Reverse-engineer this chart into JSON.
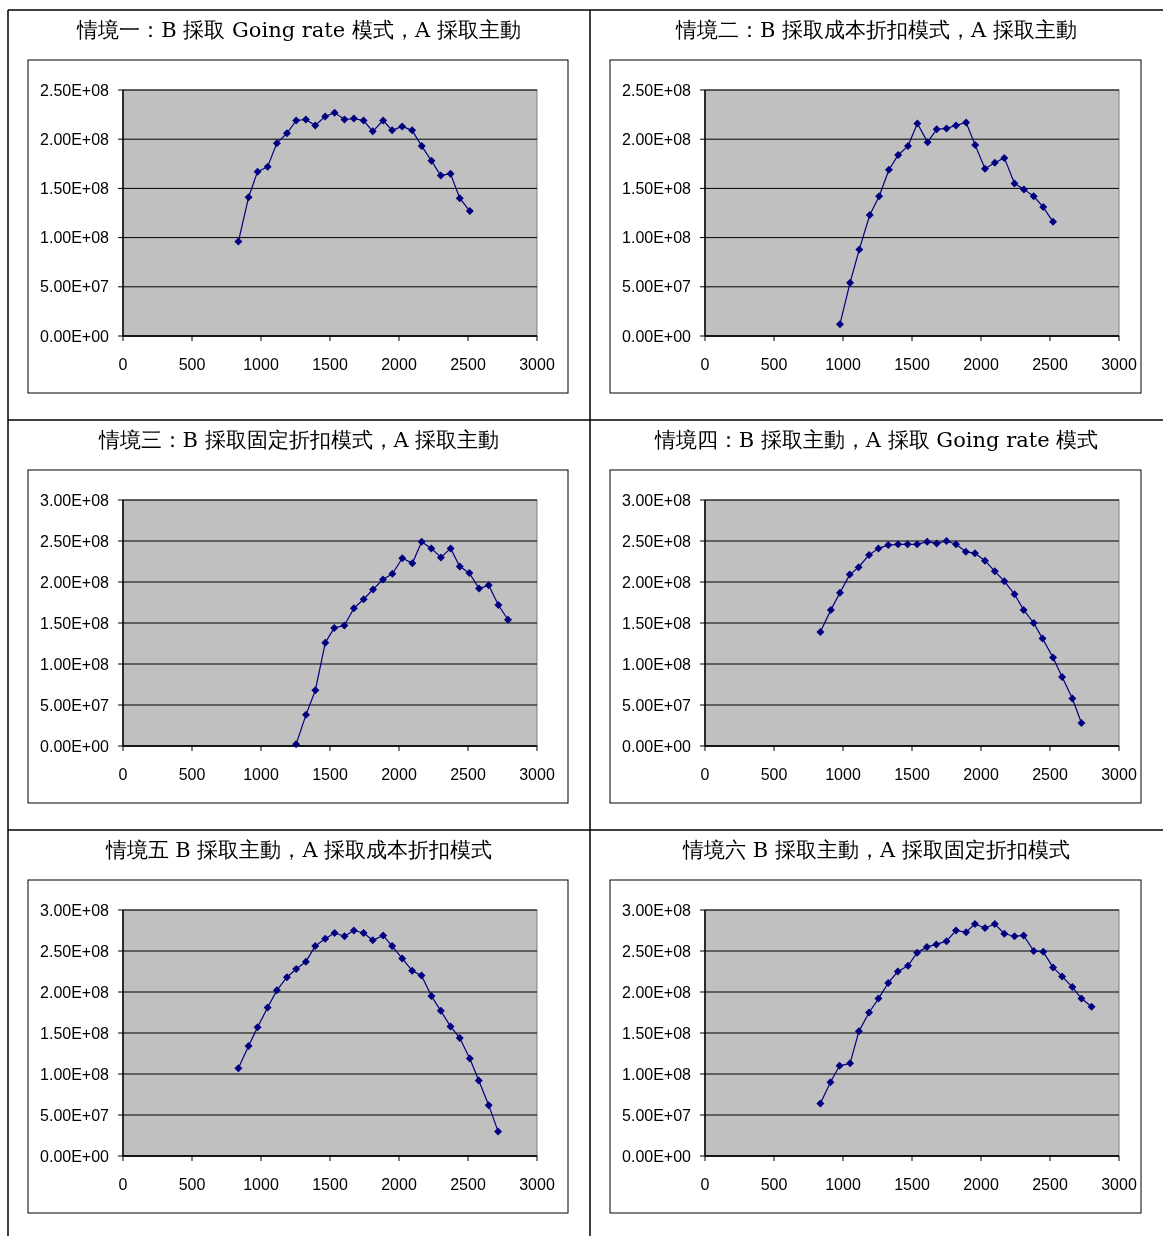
{
  "chart_data": [
    {
      "type": "line",
      "title": "情境一：B 採取 Going rate 模式，A 採取主動",
      "color": "#000080",
      "marker": "diamond",
      "grid": "y",
      "xlim": [
        0,
        3000
      ],
      "xticks": [
        0,
        500,
        1000,
        1500,
        2000,
        2500,
        3000
      ],
      "ylim": [
        0,
        250000000
      ],
      "yticks": [
        {
          "value": 0,
          "label": "0.00E+00"
        },
        {
          "value": 50000000,
          "label": "5.00E+07"
        },
        {
          "value": 100000000,
          "label": "1.00E+08"
        },
        {
          "value": 150000000,
          "label": "1.50E+08"
        },
        {
          "value": 200000000,
          "label": "2.00E+08"
        },
        {
          "value": 250000000,
          "label": "2.50E+08"
        }
      ],
      "x": [
        836,
        910,
        975,
        1048,
        1115,
        1188,
        1255,
        1325,
        1393,
        1465,
        1533,
        1605,
        1673,
        1743,
        1810,
        1885,
        1950,
        2023,
        2095,
        2165,
        2235,
        2303,
        2373,
        2440,
        2513
      ],
      "values": [
        96000000,
        141000000,
        167000000,
        172000000,
        196000000,
        206000000,
        219000000,
        220000000,
        214000000,
        223000000,
        227000000,
        220000000,
        221000000,
        219000000,
        208000000,
        219000000,
        209000000,
        213000000,
        209000000,
        193000000,
        178000000,
        163000000,
        165000000,
        140000000,
        127000000
      ]
    },
    {
      "type": "line",
      "title": "情境二：B 採取成本折扣模式，A 採取主動",
      "color": "#000080",
      "marker": "diamond",
      "grid": "y",
      "xlim": [
        0,
        3000
      ],
      "xticks": [
        0,
        500,
        1000,
        1500,
        2000,
        2500,
        3000
      ],
      "ylim": [
        0,
        250000000
      ],
      "yticks": [
        {
          "value": 0,
          "label": "0.00E+00"
        },
        {
          "value": 50000000,
          "label": "5.00E+07"
        },
        {
          "value": 100000000,
          "label": "1.00E+08"
        },
        {
          "value": 150000000,
          "label": "1.50E+08"
        },
        {
          "value": 200000000,
          "label": "2.00E+08"
        },
        {
          "value": 250000000,
          "label": "2.50E+08"
        }
      ],
      "x": [
        978,
        1051,
        1118,
        1194,
        1262,
        1333,
        1400,
        1471,
        1539,
        1613,
        1679,
        1750,
        1819,
        1892,
        1958,
        2029,
        2100,
        2169,
        2243,
        2311,
        2382,
        2451,
        2522
      ],
      "values": [
        12000000,
        54000000,
        88000000,
        123000000,
        142000000,
        169000000,
        184000000,
        193000000,
        216000000,
        197000000,
        210000000,
        211000000,
        214000000,
        217000000,
        194000000,
        170000000,
        176000000,
        181000000,
        155000000,
        149000000,
        142000000,
        131000000,
        116000000
      ]
    },
    {
      "type": "line",
      "title": "情境三：B 採取固定折扣模式，A 採取主動",
      "color": "#000080",
      "marker": "diamond",
      "grid": "y",
      "xlim": [
        0,
        3000
      ],
      "xticks": [
        0,
        500,
        1000,
        1500,
        2000,
        2500,
        3000
      ],
      "ylim": [
        0,
        300000000
      ],
      "yticks": [
        {
          "value": 0,
          "label": "0.00E+00"
        },
        {
          "value": 50000000,
          "label": "5.00E+07"
        },
        {
          "value": 100000000,
          "label": "1.00E+08"
        },
        {
          "value": 150000000,
          "label": "1.50E+08"
        },
        {
          "value": 200000000,
          "label": "2.00E+08"
        },
        {
          "value": 250000000,
          "label": "2.50E+08"
        },
        {
          "value": 300000000,
          "label": "3.00E+08"
        }
      ],
      "x": [
        1254,
        1326,
        1394,
        1466,
        1531,
        1604,
        1673,
        1744,
        1812,
        1884,
        1952,
        2024,
        2097,
        2164,
        2234,
        2304,
        2374,
        2440,
        2510,
        2580,
        2650,
        2720,
        2790
      ],
      "values": [
        2000000,
        38000000,
        68000000,
        126000000,
        144000000,
        147000000,
        168000000,
        179000000,
        191000000,
        203000000,
        210000000,
        229000000,
        223000000,
        249000000,
        241000000,
        230000000,
        241000000,
        219000000,
        211000000,
        192000000,
        196000000,
        172000000,
        154000000
      ]
    },
    {
      "type": "line",
      "title": "情境四：B 採取主動，A 採取 Going rate 模式",
      "color": "#000080",
      "marker": "diamond",
      "grid": "y",
      "xlim": [
        0,
        3000
      ],
      "xticks": [
        0,
        500,
        1000,
        1500,
        2000,
        2500,
        3000
      ],
      "ylim": [
        0,
        300000000
      ],
      "yticks": [
        {
          "value": 0,
          "label": "0.00E+00"
        },
        {
          "value": 50000000,
          "label": "5.00E+07"
        },
        {
          "value": 100000000,
          "label": "1.00E+08"
        },
        {
          "value": 150000000,
          "label": "1.50E+08"
        },
        {
          "value": 200000000,
          "label": "2.00E+08"
        },
        {
          "value": 250000000,
          "label": "2.50E+08"
        },
        {
          "value": 300000000,
          "label": "3.00E+08"
        }
      ],
      "x": [
        836,
        912,
        978,
        1049,
        1113,
        1189,
        1257,
        1328,
        1399,
        1468,
        1537,
        1610,
        1679,
        1750,
        1819,
        1890,
        1956,
        2029,
        2100,
        2169,
        2243,
        2309,
        2382,
        2446,
        2522,
        2588,
        2662,
        2728
      ],
      "values": [
        139000000,
        166000000,
        187000000,
        209000000,
        218000000,
        233000000,
        241000000,
        245000000,
        246000000,
        246000000,
        246000000,
        249000000,
        247000000,
        250000000,
        246000000,
        237000000,
        235000000,
        226000000,
        213000000,
        201000000,
        185000000,
        166000000,
        150000000,
        131000000,
        108000000,
        84000000,
        58000000,
        28000000
      ]
    },
    {
      "type": "line",
      "title": "情境五 B 採取主動，A 採取成本折扣模式",
      "color": "#000080",
      "marker": "diamond",
      "grid": "y",
      "xlim": [
        0,
        3000
      ],
      "xticks": [
        0,
        500,
        1000,
        1500,
        2000,
        2500,
        3000
      ],
      "ylim": [
        0,
        300000000
      ],
      "yticks": [
        {
          "value": 0,
          "label": "0.00E+00"
        },
        {
          "value": 50000000,
          "label": "5.00E+07"
        },
        {
          "value": 100000000,
          "label": "1.00E+08"
        },
        {
          "value": 150000000,
          "label": "1.50E+08"
        },
        {
          "value": 200000000,
          "label": "2.00E+08"
        },
        {
          "value": 250000000,
          "label": "2.50E+08"
        },
        {
          "value": 300000000,
          "label": "3.00E+08"
        }
      ],
      "x": [
        836,
        910,
        975,
        1048,
        1115,
        1188,
        1255,
        1325,
        1393,
        1465,
        1533,
        1605,
        1673,
        1743,
        1810,
        1885,
        1950,
        2023,
        2095,
        2163,
        2235,
        2303,
        2373,
        2440,
        2513,
        2578,
        2650,
        2718
      ],
      "values": [
        107000000,
        134000000,
        157000000,
        181000000,
        202000000,
        218000000,
        228000000,
        237000000,
        256000000,
        265000000,
        272000000,
        268000000,
        275000000,
        272000000,
        263000000,
        269000000,
        256000000,
        241000000,
        226000000,
        220000000,
        195000000,
        177000000,
        158000000,
        144000000,
        119000000,
        92000000,
        62000000,
        30000000
      ]
    },
    {
      "type": "line",
      "title": "情境六 B 採取主動，A 採取固定折扣模式",
      "color": "#000080",
      "marker": "diamond",
      "grid": "y",
      "xlim": [
        0,
        3000
      ],
      "xticks": [
        0,
        500,
        1000,
        1500,
        2000,
        2500,
        3000
      ],
      "ylim": [
        0,
        300000000
      ],
      "yticks": [
        {
          "value": 0,
          "label": "0.00E+00"
        },
        {
          "value": 50000000,
          "label": "5.00E+07"
        },
        {
          "value": 100000000,
          "label": "1.00E+08"
        },
        {
          "value": 150000000,
          "label": "1.50E+08"
        },
        {
          "value": 200000000,
          "label": "2.00E+08"
        },
        {
          "value": 250000000,
          "label": "2.50E+08"
        },
        {
          "value": 300000000,
          "label": "3.00E+08"
        }
      ],
      "x": [
        836,
        909,
        975,
        1051,
        1115,
        1189,
        1257,
        1328,
        1397,
        1471,
        1537,
        1608,
        1676,
        1750,
        1819,
        1892,
        1956,
        2029,
        2100,
        2169,
        2243,
        2309,
        2382,
        2451,
        2522,
        2588,
        2662,
        2728,
        2801
      ],
      "values": [
        64000000,
        90000000,
        110000000,
        113000000,
        152000000,
        175000000,
        192000000,
        211000000,
        225000000,
        232000000,
        248000000,
        255000000,
        258000000,
        262000000,
        275000000,
        273000000,
        283000000,
        278000000,
        283000000,
        271000000,
        268000000,
        269000000,
        250000000,
        249000000,
        230000000,
        219000000,
        206000000,
        192000000,
        182000000
      ]
    }
  ]
}
